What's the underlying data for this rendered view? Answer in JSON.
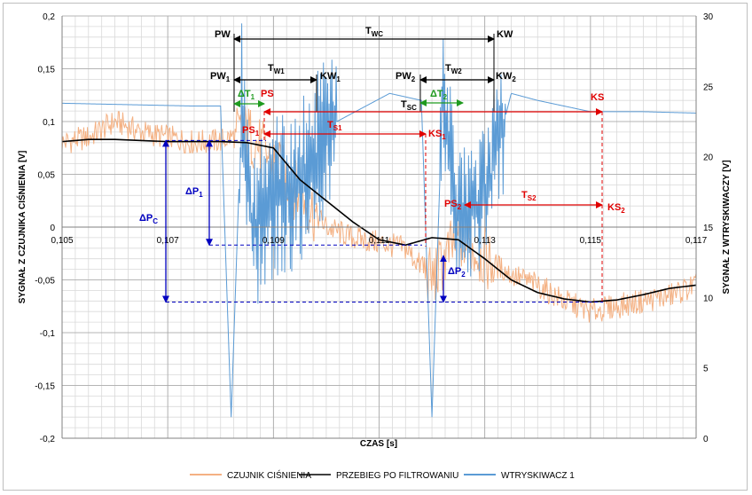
{
  "chart_data": {
    "type": "line",
    "xlabel": "CZAS [s]",
    "ylabel_left": "SYGNAŁ Z CZUJNIKA CIŚNIENIA [V]",
    "ylabel_right": "SYGNAŁ Z WTRYSKIWACZY [V]",
    "xlim": [
      0.105,
      0.117
    ],
    "ylim_left": [
      -0.2,
      0.2
    ],
    "ylim_right": [
      0,
      30
    ],
    "x_ticks": [
      "0,105",
      "0,107",
      "0,109",
      "0,111",
      "0,113",
      "0,115",
      "0,117"
    ],
    "y_ticks_left": [
      "-0,2",
      "-0,15",
      "-0,1",
      "-0,05",
      "0",
      "0,05",
      "0,1",
      "0,15",
      "0,2"
    ],
    "y_ticks_right": [
      "0",
      "5",
      "10",
      "15",
      "20",
      "25",
      "30"
    ],
    "grid": true,
    "legend_position": "bottom",
    "colors": {
      "pressure": "#f4b183",
      "filtered": "#000000",
      "injector": "#5b9bd5",
      "annotation_black": "#000000",
      "annotation_red": "#e00000",
      "annotation_green": "#1f9a1f",
      "annotation_blue": "#0000c0"
    },
    "series": [
      {
        "name": "CZUJNIK CIŚNIENIA",
        "axis": "left",
        "x": [
          0.105,
          0.1055,
          0.106,
          0.1065,
          0.107,
          0.1075,
          0.108,
          0.1085,
          0.109,
          0.1095,
          0.11,
          0.1105,
          0.111,
          0.1115,
          0.112,
          0.1125,
          0.113,
          0.1135,
          0.114,
          0.1145,
          0.115,
          0.1155,
          0.116,
          0.1165,
          0.117
        ],
        "y": [
          0.08,
          0.085,
          0.1,
          0.09,
          0.085,
          0.08,
          0.082,
          0.09,
          0.06,
          0.03,
          0.0,
          -0.01,
          -0.015,
          -0.02,
          -0.05,
          -0.01,
          -0.03,
          -0.045,
          -0.055,
          -0.07,
          -0.08,
          -0.075,
          -0.07,
          -0.065,
          -0.055
        ]
      },
      {
        "name": "PRZEBIEG PO FILTROWANIU",
        "axis": "left",
        "x": [
          0.105,
          0.1055,
          0.106,
          0.1065,
          0.107,
          0.1075,
          0.108,
          0.1085,
          0.109,
          0.1095,
          0.11,
          0.1105,
          0.111,
          0.1115,
          0.112,
          0.1125,
          0.113,
          0.1135,
          0.114,
          0.1145,
          0.115,
          0.1155,
          0.116,
          0.1165,
          0.117
        ],
        "y": [
          0.081,
          0.083,
          0.083,
          0.082,
          0.081,
          0.081,
          0.081,
          0.08,
          0.075,
          0.045,
          0.025,
          0.005,
          -0.012,
          -0.017,
          -0.01,
          -0.012,
          -0.03,
          -0.05,
          -0.062,
          -0.068,
          -0.071,
          -0.069,
          -0.064,
          -0.058,
          -0.055
        ]
      },
      {
        "name": "WTRYSKIWACZ 1",
        "axis": "right",
        "x": [
          0.105,
          0.1075,
          0.108,
          0.1082,
          0.1084,
          0.1086,
          0.109,
          0.1095,
          0.1102,
          0.1112,
          0.1118,
          0.112,
          0.1122,
          0.1125,
          0.113,
          0.1135,
          0.114,
          0.115,
          0.116,
          0.117
        ],
        "y": [
          23.8,
          23.6,
          23.6,
          1.5,
          23.6,
          15.0,
          17.0,
          18.0,
          22.5,
          24.5,
          24.0,
          1.5,
          24.0,
          16.0,
          17.0,
          24.5,
          24.0,
          23.2,
          23.2,
          23.1
        ]
      }
    ],
    "annotations": {
      "PW": "PW",
      "T_WC": "T",
      "T_WC_sub": "WC",
      "KW": "KW",
      "PW1": "PW",
      "PW1_sub": "1",
      "T_W1": "T",
      "T_W1_sub": "W1",
      "KW1": "KW",
      "KW1_sub": "1",
      "PW2": "PW",
      "PW2_sub": "2",
      "T_W2": "T",
      "T_W2_sub": "W2",
      "KW2": "KW",
      "KW2_sub": "2",
      "dT1": "ΔT",
      "dT1_sub": "1",
      "PS": "PS",
      "T_SC": "T",
      "T_SC_sub": "SC",
      "dT2": "ΔT",
      "dT2_sub": "2",
      "KS": "KS",
      "PS1": "PS",
      "PS1_sub": "1",
      "T_S1": "T",
      "T_S1_sub": "S1",
      "KS1": "KS",
      "KS1_sub": "1",
      "PS2": "PS",
      "PS2_sub": "2",
      "T_S2": "T",
      "T_S2_sub": "S2",
      "KS2": "KS",
      "KS2_sub": "2",
      "dP1": "ΔP",
      "dP1_sub": "1",
      "dPC": "ΔP",
      "dPC_sub": "C",
      "dP2": "ΔP",
      "dP2_sub": "2"
    }
  }
}
